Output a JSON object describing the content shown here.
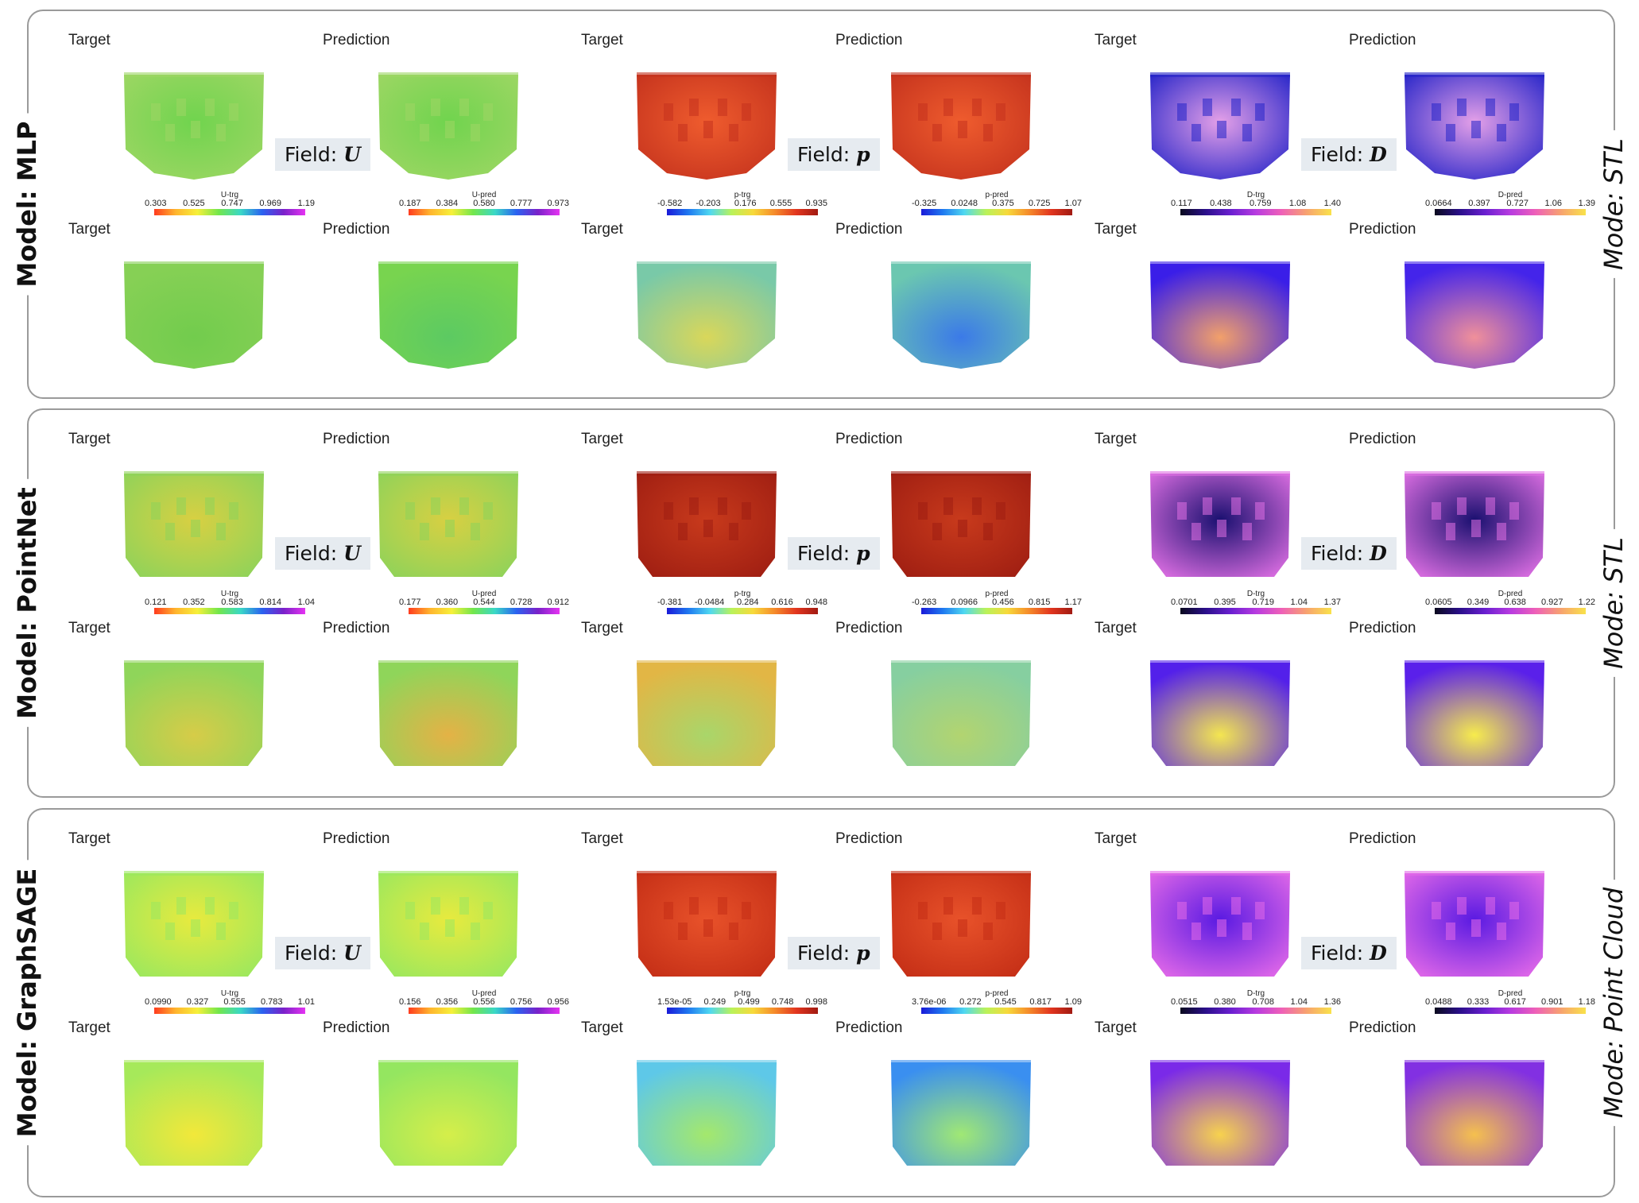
{
  "panels": [
    {
      "model": "Model: MLP",
      "mode": "Mode: STL",
      "row_labels": [
        "Target",
        "Prediction"
      ],
      "fields": [
        {
          "tag": "Field:",
          "symbol": "U",
          "target_bar": {
            "title": "U-trg",
            "ticks": [
              "0.303",
              "0.525",
              "0.747",
              "0.969",
              "1.19"
            ],
            "colormap": "jet"
          },
          "pred_bar": {
            "title": "U-pred",
            "ticks": [
              "0.187",
              "0.384",
              "0.580",
              "0.777",
              "0.973"
            ],
            "colormap": "jet"
          }
        },
        {
          "tag": "Field:",
          "symbol": "p",
          "target_bar": {
            "title": "p-trg",
            "ticks": [
              "-0.582",
              "-0.203",
              "0.176",
              "0.555",
              "0.935"
            ],
            "colormap": "jet-rev"
          },
          "pred_bar": {
            "title": "p-pred",
            "ticks": [
              "-0.325",
              "0.0248",
              "0.375",
              "0.725",
              "1.07"
            ],
            "colormap": "jet-rev"
          }
        },
        {
          "tag": "Field:",
          "symbol": "D",
          "target_bar": {
            "title": "D-trg",
            "ticks": [
              "0.117",
              "0.438",
              "0.759",
              "1.08",
              "1.40"
            ],
            "colormap": "plasma"
          },
          "pred_bar": {
            "title": "D-pred",
            "ticks": [
              "0.0664",
              "0.397",
              "0.727",
              "1.06",
              "1.39"
            ],
            "colormap": "plasma"
          }
        }
      ]
    },
    {
      "model": "Model: PointNet",
      "mode": "Mode: STL",
      "row_labels": [
        "Target",
        "Prediction"
      ],
      "fields": [
        {
          "tag": "Field:",
          "symbol": "U",
          "target_bar": {
            "title": "U-trg",
            "ticks": [
              "0.121",
              "0.352",
              "0.583",
              "0.814",
              "1.04"
            ],
            "colormap": "jet"
          },
          "pred_bar": {
            "title": "U-pred",
            "ticks": [
              "0.177",
              "0.360",
              "0.544",
              "0.728",
              "0.912"
            ],
            "colormap": "jet"
          }
        },
        {
          "tag": "Field:",
          "symbol": "p",
          "target_bar": {
            "title": "p-trg",
            "ticks": [
              "-0.381",
              "-0.0484",
              "0.284",
              "0.616",
              "0.948"
            ],
            "colormap": "jet-rev"
          },
          "pred_bar": {
            "title": "p-pred",
            "ticks": [
              "-0.263",
              "0.0966",
              "0.456",
              "0.815",
              "1.17"
            ],
            "colormap": "jet-rev"
          }
        },
        {
          "tag": "Field:",
          "symbol": "D",
          "target_bar": {
            "title": "D-trg",
            "ticks": [
              "0.0701",
              "0.395",
              "0.719",
              "1.04",
              "1.37"
            ],
            "colormap": "plasma"
          },
          "pred_bar": {
            "title": "D-pred",
            "ticks": [
              "0.0605",
              "0.349",
              "0.638",
              "0.927",
              "1.22"
            ],
            "colormap": "plasma"
          }
        }
      ]
    },
    {
      "model": "Model: GraphSAGE",
      "mode": "Mode: Point Cloud",
      "row_labels": [
        "Target",
        "Prediction"
      ],
      "fields": [
        {
          "tag": "Field:",
          "symbol": "U",
          "target_bar": {
            "title": "U-trg",
            "ticks": [
              "0.0990",
              "0.327",
              "0.555",
              "0.783",
              "1.01"
            ],
            "colormap": "jet"
          },
          "pred_bar": {
            "title": "U-pred",
            "ticks": [
              "0.156",
              "0.356",
              "0.556",
              "0.756",
              "0.956"
            ],
            "colormap": "jet"
          }
        },
        {
          "tag": "Field:",
          "symbol": "p",
          "target_bar": {
            "title": "p-trg",
            "ticks": [
              "1.53e-05",
              "0.249",
              "0.499",
              "0.748",
              "0.998"
            ],
            "colormap": "jet-rev"
          },
          "pred_bar": {
            "title": "p-pred",
            "ticks": [
              "3.76e-06",
              "0.272",
              "0.545",
              "0.817",
              "1.09"
            ],
            "colormap": "jet-rev"
          }
        },
        {
          "tag": "Field:",
          "symbol": "D",
          "target_bar": {
            "title": "D-trg",
            "ticks": [
              "0.0515",
              "0.380",
              "0.708",
              "1.04",
              "1.36"
            ],
            "colormap": "plasma"
          },
          "pred_bar": {
            "title": "D-pred",
            "ticks": [
              "0.0488",
              "0.333",
              "0.617",
              "0.901",
              "1.18"
            ],
            "colormap": "plasma"
          }
        }
      ]
    }
  ],
  "colormaps": {
    "jet": [
      "#ff3b1f",
      "#ffb52e",
      "#f6f03a",
      "#72e64c",
      "#3ad8c6",
      "#2a62f0",
      "#7a21c9",
      "#e633f2"
    ],
    "jet-rev": [
      "#1a1ad8",
      "#1f79f0",
      "#4fd8f0",
      "#b9f25a",
      "#f7d93b",
      "#f58a2a",
      "#e2361f",
      "#a11a12"
    ],
    "plasma": [
      "#0a0a1e",
      "#2a0f8a",
      "#6a1fd0",
      "#b73be0",
      "#ee5fb9",
      "#f7a170",
      "#f9e24a"
    ]
  },
  "map_colors": {
    "mlp": {
      "U": {
        "top": [
          "#9ed664",
          "#70d44e"
        ],
        "bottom": [
          "#86d055",
          "#72cc4d"
        ],
        "bottom_pred": [
          "#78d44f",
          "#5cca62"
        ]
      },
      "p": {
        "top": [
          "#c4321d",
          "#ef5c2e"
        ],
        "bottom": [
          "#79c9a8",
          "#d9d75a"
        ],
        "bottom_pred": [
          "#6bc7b0",
          "#3b7ae8"
        ]
      },
      "D": {
        "top": [
          "#2222c8",
          "#e4a0e8"
        ],
        "bottom": [
          "#3a1ee8",
          "#f2a06a"
        ],
        "bottom_pred": [
          "#4424ea",
          "#f0909a"
        ]
      }
    },
    "pointnet": {
      "U": {
        "top": [
          "#8ed35a",
          "#d8d042"
        ],
        "bottom": [
          "#8fd55a",
          "#d6cc48"
        ],
        "bottom_pred": [
          "#8fd55a",
          "#e4b246"
        ]
      },
      "p": {
        "top": [
          "#9f1e12",
          "#c83a1c"
        ],
        "bottom": [
          "#e2b645",
          "#a9d66a"
        ],
        "bottom_pred": [
          "#86cfa0",
          "#b2d470"
        ]
      },
      "D": {
        "top": [
          "#e070e4",
          "#1a1070"
        ],
        "bottom": [
          "#5320ea",
          "#f4e650"
        ],
        "bottom_pred": [
          "#5a20ea",
          "#f7ec4c"
        ]
      }
    },
    "graphsage": {
      "U": {
        "top": [
          "#9ae85e",
          "#e8ea3e"
        ],
        "bottom": [
          "#a6e95a",
          "#f2e83a"
        ],
        "bottom_pred": [
          "#94e660",
          "#d5ee4a"
        ]
      },
      "p": {
        "top": [
          "#c42e16",
          "#e8522a"
        ],
        "bottom": [
          "#5ec8e8",
          "#a4e86c"
        ],
        "bottom_pred": [
          "#3a8ff0",
          "#a0e874"
        ]
      },
      "D": {
        "top": [
          "#e46ae8",
          "#5a1ae2"
        ],
        "bottom": [
          "#7a2ae8",
          "#f7d24e"
        ],
        "bottom_pred": [
          "#8230e2",
          "#f5c04e"
        ]
      }
    }
  }
}
